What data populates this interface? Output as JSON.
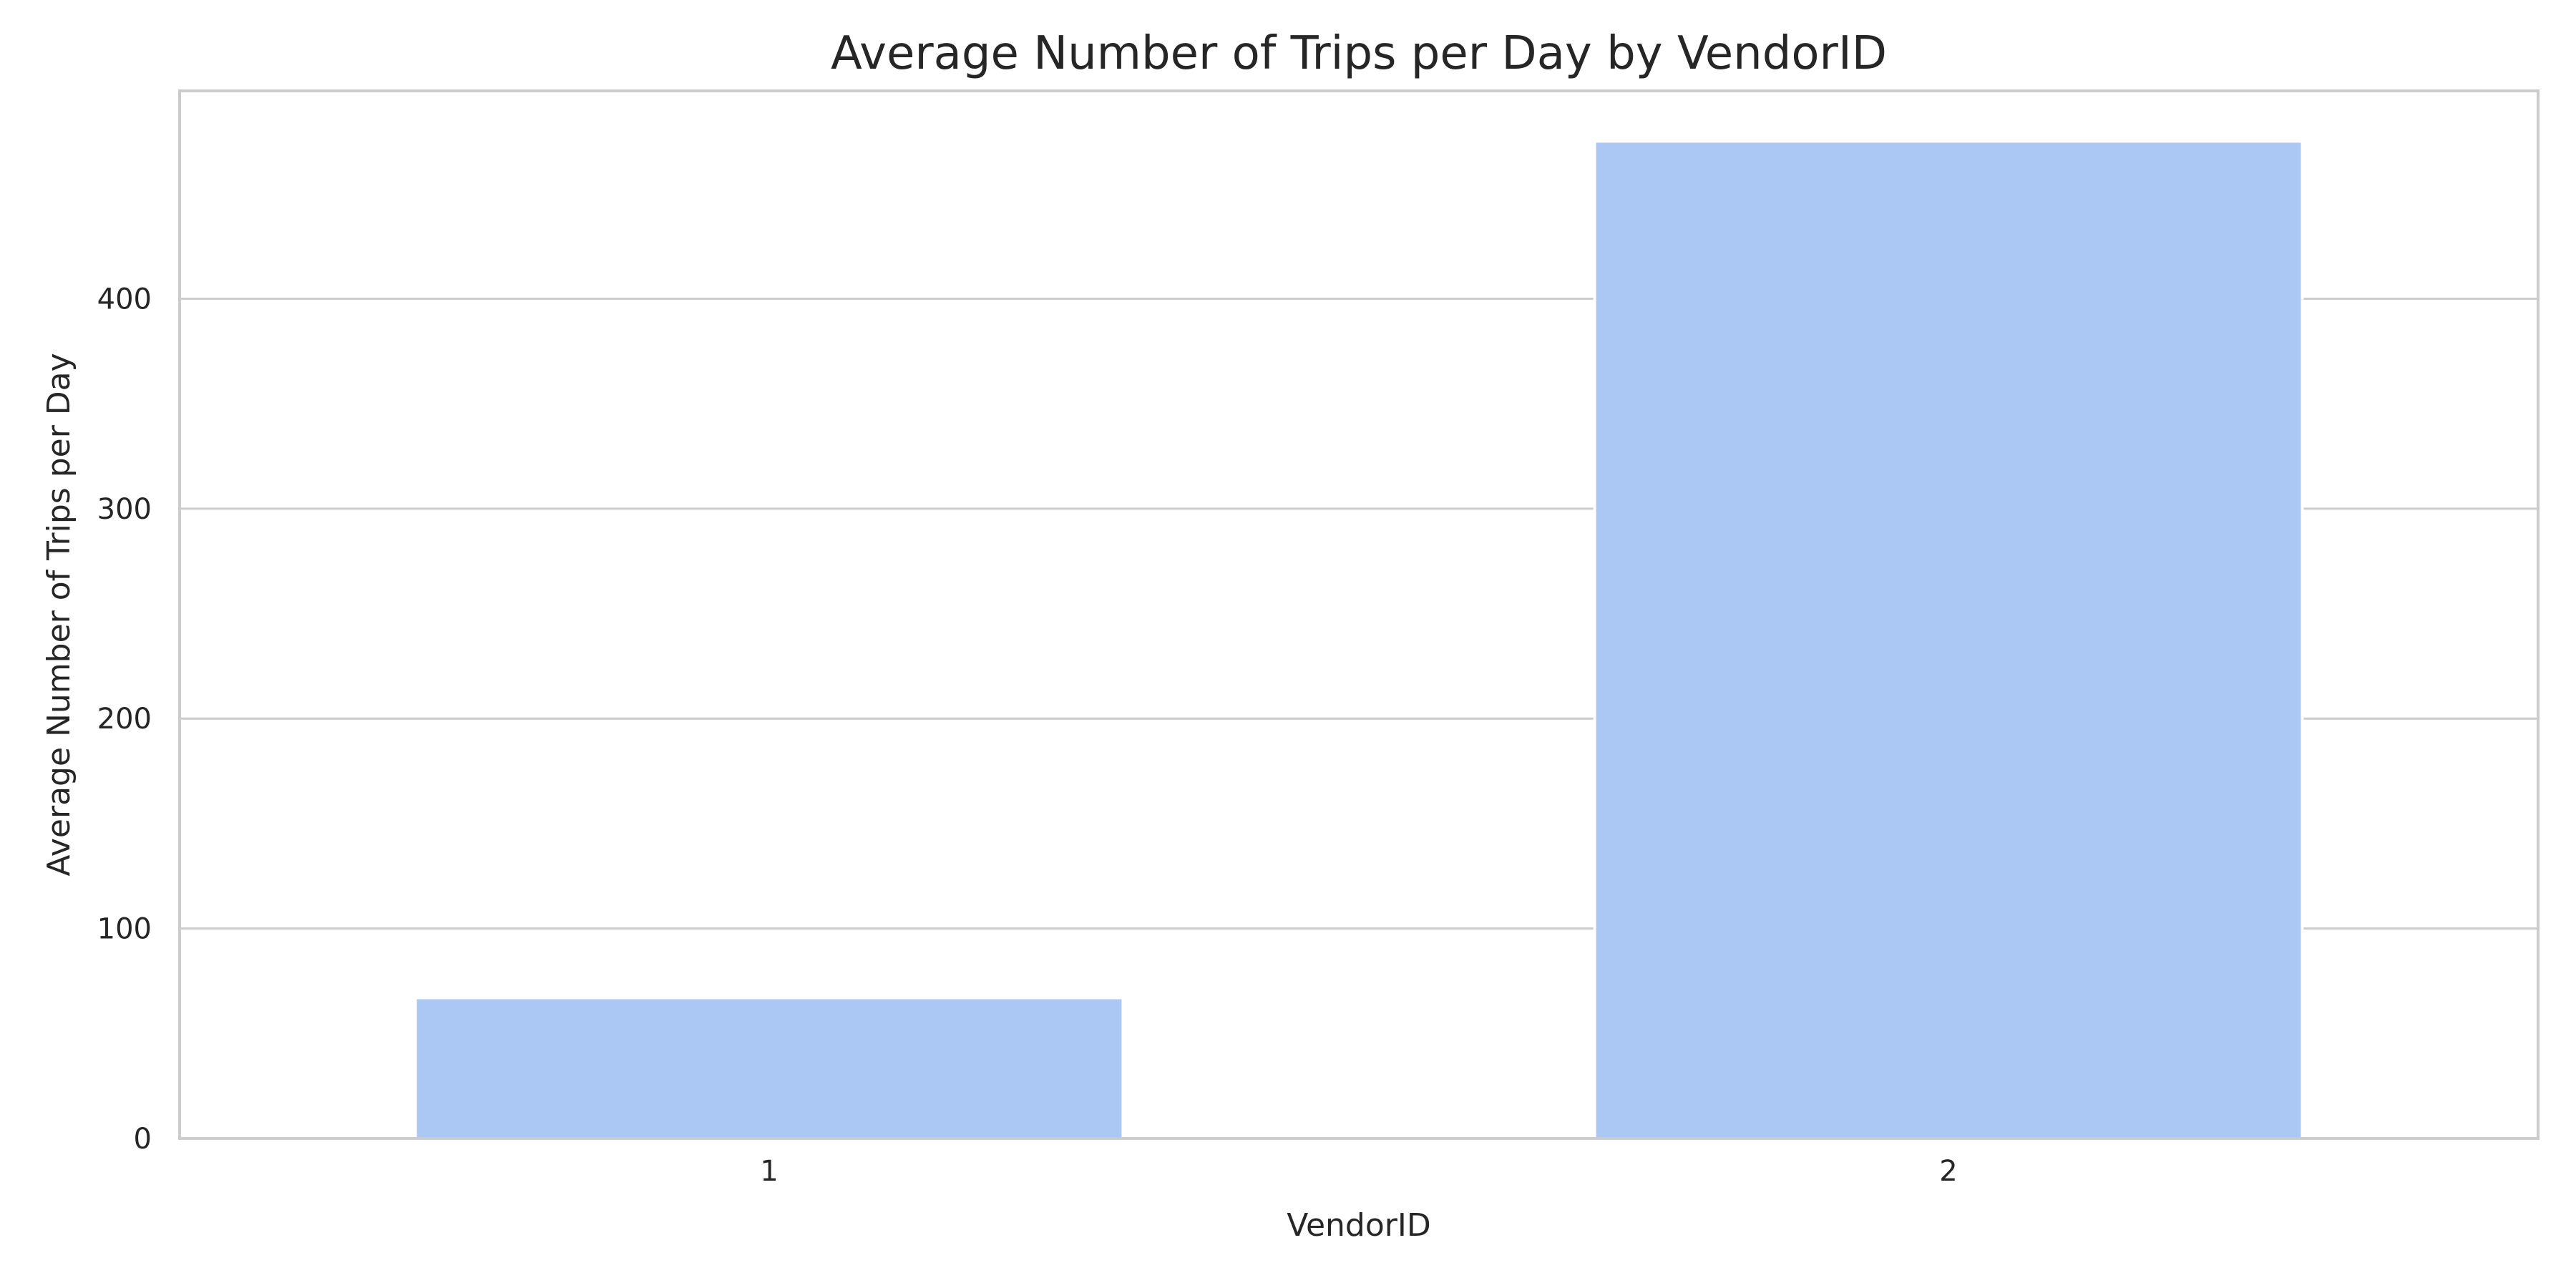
{
  "chart_data": {
    "type": "bar",
    "title": "Average Number of Trips per Day by VendorID",
    "xlabel": "VendorID",
    "ylabel": "Average Number of Trips per Day",
    "categories": [
      "1",
      "2"
    ],
    "values": [
      67,
      475
    ],
    "ylim": [
      0,
      499
    ],
    "yticks": [
      0,
      100,
      200,
      300,
      400
    ],
    "grid": true,
    "colors": {
      "bar": "#abc7f4",
      "grid": "#cccccc",
      "frame": "#cccccc",
      "text": "#262626"
    }
  }
}
